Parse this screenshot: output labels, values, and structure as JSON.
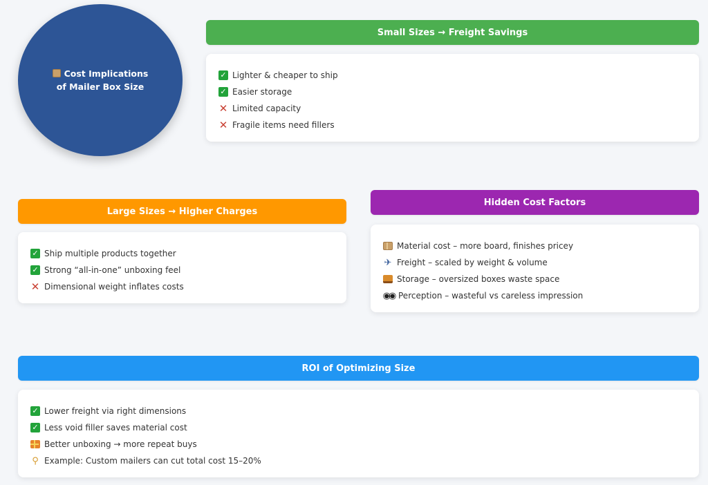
{
  "title": {
    "icon": "package-icon",
    "line1": "Cost Implications",
    "line2": "of Mailer Box Size",
    "color": "#2d5596"
  },
  "sections": {
    "small": {
      "header": "Small Sizes → Freight Savings",
      "color": "#4caf50",
      "items": [
        {
          "icon": "check-icon",
          "text": "Lighter & cheaper to ship"
        },
        {
          "icon": "check-icon",
          "text": "Easier storage"
        },
        {
          "icon": "cross-icon",
          "text": "Limited capacity"
        },
        {
          "icon": "cross-icon",
          "text": "Fragile items need fillers"
        }
      ]
    },
    "large": {
      "header": "Large Sizes → Higher Charges",
      "color": "#ff9800",
      "items": [
        {
          "icon": "check-icon",
          "text": "Ship multiple products together"
        },
        {
          "icon": "check-icon",
          "text": "Strong “all-in-one” unboxing feel"
        },
        {
          "icon": "cross-icon",
          "text": "Dimensional weight inflates costs"
        }
      ]
    },
    "hidden": {
      "header": "Hidden Cost Factors",
      "color": "#9c27b0",
      "items": [
        {
          "icon": "package-icon",
          "text": "Material cost – more board, finishes pricey"
        },
        {
          "icon": "airplane-icon",
          "text": "Freight – scaled by weight & volume"
        },
        {
          "icon": "storage-icon",
          "text": "Storage – oversized boxes waste space"
        },
        {
          "icon": "eyes-icon",
          "text": "Perception – wasteful vs careless impression"
        }
      ]
    },
    "roi": {
      "header": "ROI of Optimizing Size",
      "color": "#2196f3",
      "items": [
        {
          "icon": "check-icon",
          "text": "Lower freight via right dimensions"
        },
        {
          "icon": "check-icon",
          "text": "Less void filler saves material cost"
        },
        {
          "icon": "gift-icon",
          "text": "Better unboxing → more repeat buys"
        },
        {
          "icon": "lightbulb-icon",
          "text": "Example: Custom mailers can cut total cost 15–20%"
        }
      ]
    }
  }
}
